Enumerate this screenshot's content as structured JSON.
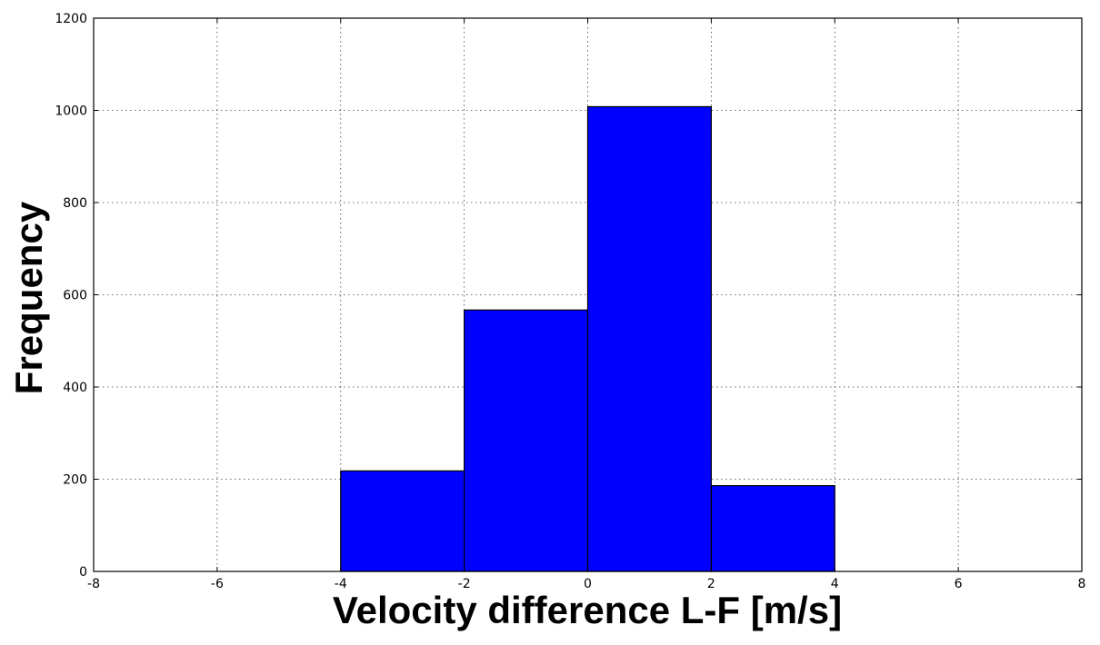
{
  "chart_data": {
    "type": "bar",
    "title": "",
    "xlabel": "Velocity difference L-F [m/s]",
    "ylabel": "Frequency",
    "xlim": [
      -8,
      8
    ],
    "ylim": [
      0,
      1200
    ],
    "xticks": [
      -8,
      -6,
      -4,
      -2,
      0,
      2,
      4,
      6,
      8
    ],
    "xtick_labels": [
      "-8",
      "-6",
      "-4",
      "-2",
      "0",
      "2",
      "4",
      "6",
      "8"
    ],
    "yticks": [
      0,
      200,
      400,
      600,
      800,
      1000,
      1200
    ],
    "ytick_labels": [
      "0",
      "200",
      "400",
      "600",
      "800",
      "1000",
      "1200"
    ],
    "grid": true,
    "bar_color": "#0000ff",
    "edge_color": "#000000",
    "bins": [
      {
        "start": -4,
        "end": -2,
        "value": 218
      },
      {
        "start": -2,
        "end": 0,
        "value": 567
      },
      {
        "start": 0,
        "end": 2,
        "value": 1008
      },
      {
        "start": 2,
        "end": 4,
        "value": 186
      }
    ]
  }
}
